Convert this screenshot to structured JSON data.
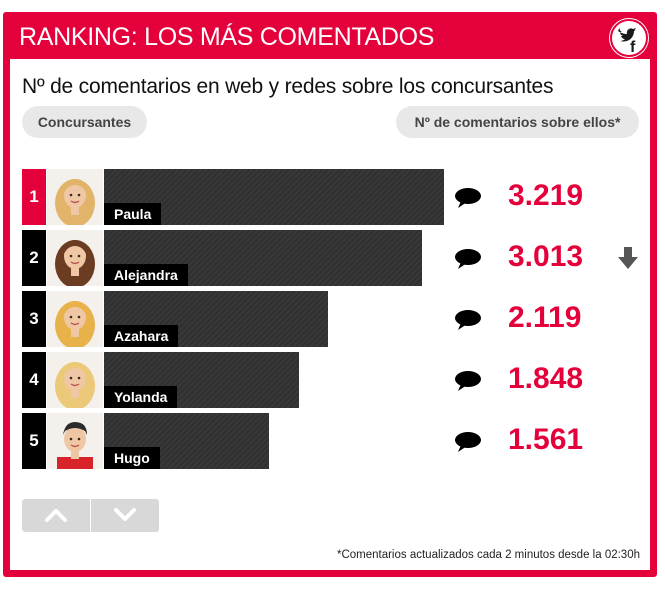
{
  "header": {
    "title": "RANKING: LOS MÁS COMENTADOS"
  },
  "subtitle": "Nº de comentarios en web y redes sobre los concursantes",
  "columns": {
    "left": "Concursantes",
    "right": "Nº de comentarios sobre ellos*"
  },
  "accent_color": "#e4003a",
  "ranking": [
    {
      "rank": "1",
      "name": "Paula",
      "count": "3.219",
      "value": 3219,
      "trend": "none"
    },
    {
      "rank": "2",
      "name": "Alejandra",
      "count": "3.013",
      "value": 3013,
      "trend": "down"
    },
    {
      "rank": "3",
      "name": "Azahara",
      "count": "2.119",
      "value": 2119,
      "trend": "none"
    },
    {
      "rank": "4",
      "name": "Yolanda",
      "count": "1.848",
      "value": 1848,
      "trend": "none"
    },
    {
      "rank": "5",
      "name": "Hugo",
      "count": "1.561",
      "value": 1561,
      "trend": "none"
    }
  ],
  "icons": {
    "social": "twitter-facebook-icon",
    "comment": "comment-bubble-icon",
    "trend_down": "arrow-down-icon",
    "nav_up": "chevron-up-icon",
    "nav_down": "chevron-down-icon"
  },
  "footnote": "*Comentarios actualizados cada 2 minutos desde la 02:30h"
}
